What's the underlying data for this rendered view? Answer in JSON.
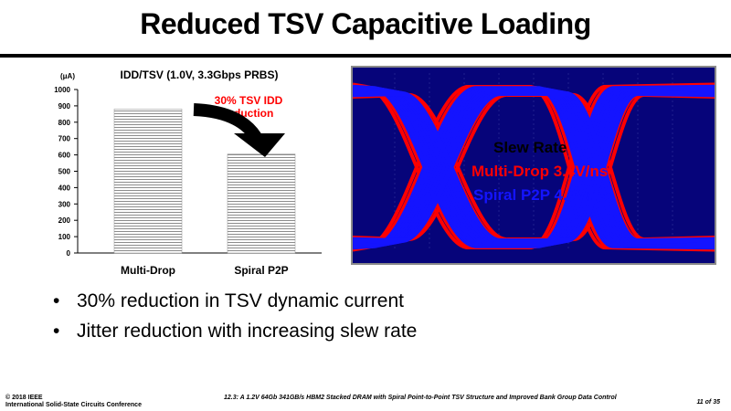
{
  "slide": {
    "title": "Reduced TSV Capacitive Loading"
  },
  "chart_data": {
    "type": "bar",
    "title": "IDD/TSV (1.0V, 3.3Gbps PRBS)",
    "unit": "(μA)",
    "categories": [
      "Multi-Drop",
      "Spiral P2P"
    ],
    "values": [
      880,
      605
    ],
    "ylim": [
      0,
      1000
    ],
    "yticks": [
      0,
      100,
      200,
      300,
      400,
      500,
      600,
      700,
      800,
      900,
      1000
    ],
    "grid": false,
    "annotation": {
      "line1": "30% TSV IDD",
      "line2": "reduction",
      "color": "#ff0000"
    }
  },
  "eye_diagram": {
    "background": "#06047a",
    "series_colors": {
      "multi_drop": "#ff0000",
      "spiral": "#1414ff"
    },
    "heading": "Slew Rate",
    "multi_drop_label": "Multi-Drop 3.4V/ns",
    "spiral_label": "Spiral P2P 4.9V/ns"
  },
  "bullets": [
    "30% reduction in TSV dynamic current",
    "Jitter reduction with increasing slew rate"
  ],
  "footer": {
    "copyright": "© 2018 IEEE",
    "conference": "International Solid-State Circuits Conference",
    "paper": "12.3: A 1.2V 64Gb 341GB/s HBM2 Stacked DRAM with Spiral Point-to-Point TSV Structure and Improved Bank Group Data Control",
    "page": "11 of 35"
  }
}
